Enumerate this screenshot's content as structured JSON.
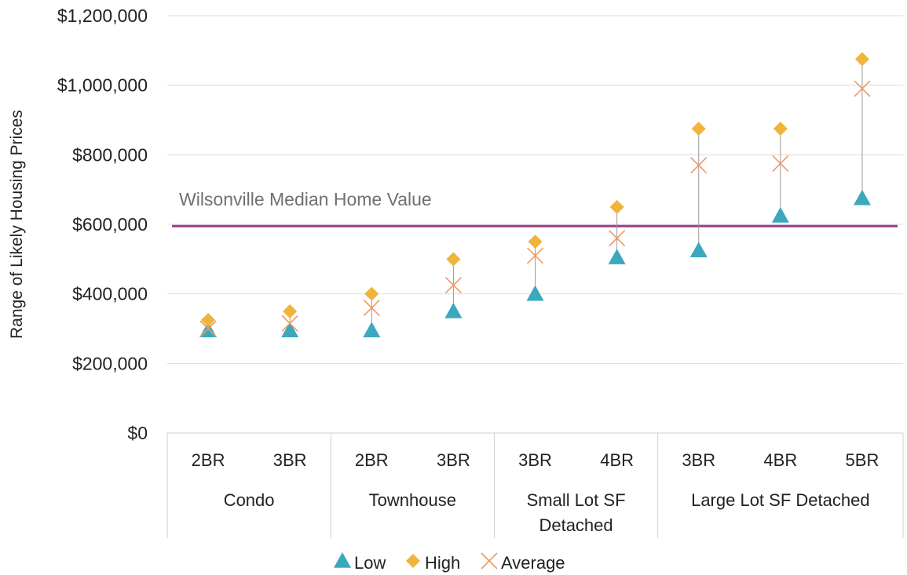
{
  "chart_data": {
    "type": "scatter",
    "title": "",
    "ylabel": "Range of Likely Housing Prices",
    "xlabel": "",
    "ylim": [
      0,
      1200000
    ],
    "yticks": [
      0,
      200000,
      400000,
      600000,
      800000,
      1000000,
      1200000
    ],
    "ytick_labels": [
      "$0",
      "$200,000",
      "$400,000",
      "$600,000",
      "$800,000",
      "$1,000,000",
      "$1,200,000"
    ],
    "grid": true,
    "legend_position": "bottom",
    "groups": [
      {
        "label": "Condo",
        "label_lines": [
          "Condo"
        ],
        "size": 2
      },
      {
        "label": "Townhouse",
        "label_lines": [
          "Townhouse"
        ],
        "size": 2
      },
      {
        "label": "Small Lot SF Detached",
        "label_lines": [
          "Small Lot SF",
          "Detached"
        ],
        "size": 2
      },
      {
        "label": "Large Lot SF Detached",
        "label_lines": [
          "Large Lot SF Detached"
        ],
        "size": 3
      }
    ],
    "categories": [
      "2BR",
      "3BR",
      "2BR",
      "3BR",
      "3BR",
      "4BR",
      "3BR",
      "4BR",
      "5BR"
    ],
    "series": [
      {
        "name": "Low",
        "marker": "triangle",
        "color": "#3ba8bd",
        "values": [
          295000,
          295000,
          295000,
          350000,
          400000,
          505000,
          525000,
          625000,
          675000
        ]
      },
      {
        "name": "High",
        "marker": "diamond",
        "color": "#f0b43c",
        "values": [
          325000,
          350000,
          400000,
          500000,
          550000,
          650000,
          875000,
          875000,
          1075000
        ]
      },
      {
        "name": "Average",
        "marker": "x",
        "color": "#ee9a62",
        "values": [
          300000,
          315000,
          360000,
          425000,
          510000,
          560000,
          770000,
          775000,
          990000
        ]
      }
    ],
    "reference_line": {
      "label": "Wilsonville Median Home Value",
      "value": 595000,
      "color": "#9c3f8a"
    }
  }
}
